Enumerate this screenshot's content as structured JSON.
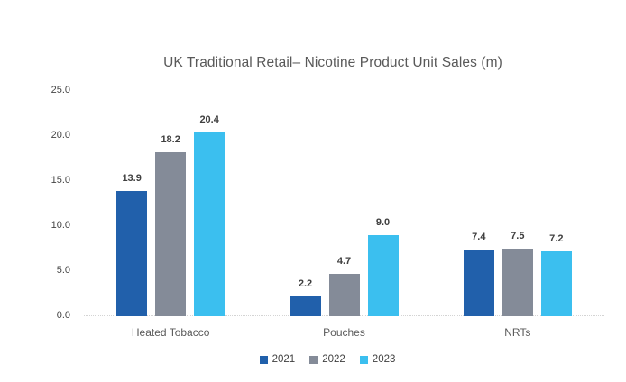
{
  "chart_data": {
    "type": "bar",
    "title": "UK Traditional Retail– Nicotine Product Unit Sales (m)",
    "categories": [
      "Heated Tobacco",
      "Pouches",
      "NRTs"
    ],
    "series": [
      {
        "name": "2021",
        "color": "#2160AB",
        "values": [
          13.9,
          2.2,
          7.4
        ]
      },
      {
        "name": "2022",
        "color": "#848B98",
        "values": [
          18.2,
          4.7,
          7.5
        ]
      },
      {
        "name": "2023",
        "color": "#3BBFEF",
        "values": [
          20.4,
          9.0,
          7.2
        ]
      }
    ],
    "value_labels": [
      [
        "13.9",
        "2.2",
        "7.4"
      ],
      [
        "18.2",
        "4.7",
        "7.5"
      ],
      [
        "20.4",
        "9.0",
        "7.2"
      ]
    ],
    "yticks": [
      "0.0",
      "5.0",
      "10.0",
      "15.0",
      "20.0",
      "25.0"
    ],
    "ytick_values": [
      0,
      5,
      10,
      15,
      20,
      25
    ],
    "ylim": [
      0,
      25
    ],
    "xlabel": "",
    "ylabel": "",
    "grid": false,
    "legend_position": "bottom"
  },
  "colors": {
    "background": "#FFFFFF",
    "title_text": "#595959",
    "axis_text": "#454545",
    "value_text": "#3F3F3F",
    "category_text": "#595959",
    "legend_text": "#404040",
    "axis_line": "#D4D4D4"
  }
}
